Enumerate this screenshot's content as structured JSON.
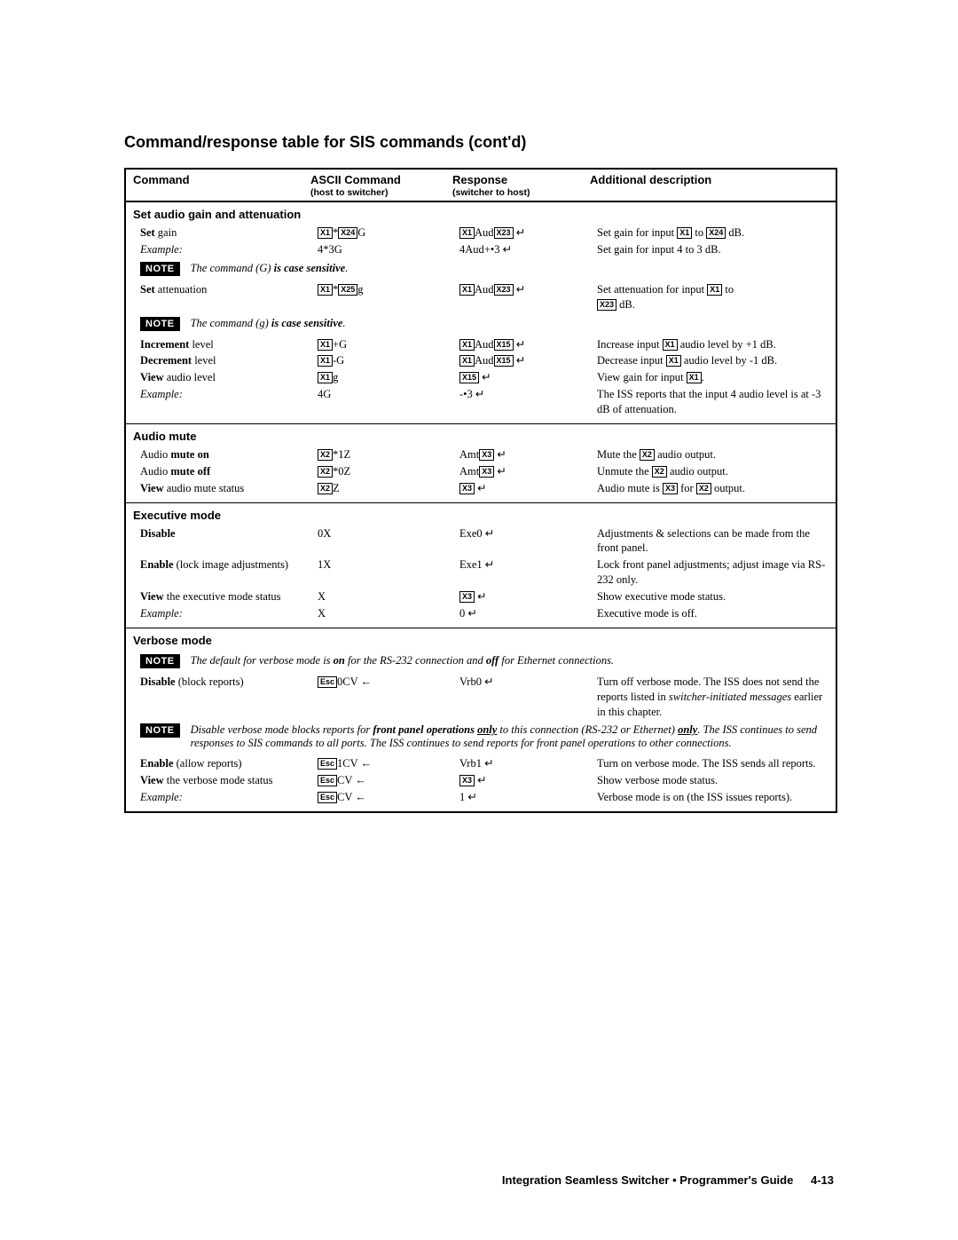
{
  "title": "Command/response table for SIS commands (cont'd)",
  "columns": {
    "c1": "Command",
    "c2": "ASCII Command",
    "c2s": "(host to switcher)",
    "c3": "Response",
    "c3s": "(switcher to host)",
    "c4": "Additional description"
  },
  "sections": {
    "gain": {
      "hdr": "Set audio gain and attenuation",
      "setgain": {
        "label": "Set",
        "label2": " gain",
        "ascii_mid": "*",
        "ascii_tail": "G",
        "resp_mid": "Aud",
        "desc_pre": "Set gain for input ",
        "desc_mid": " to ",
        "desc_post": " dB."
      },
      "ex1": {
        "label": "Example:",
        "ascii": "4*3G",
        "resp": "4Aud+•3 ↵",
        "desc": "Set gain for input 4 to 3 dB."
      },
      "note1": {
        "text_pre": "The command (G) ",
        "text_bold": "is case sensitive",
        "text_post": "."
      },
      "setattn": {
        "label": "Set",
        "label2": " attenuation",
        "ascii_mid": "*",
        "ascii_tail": "g",
        "resp_mid": "Aud",
        "desc_pre": "Set attenuation for input ",
        "desc_mid": " to ",
        "desc_post": " dB."
      },
      "note2": {
        "text_pre": "The command (g) ",
        "text_bold": "is case sensitive",
        "text_post": "."
      },
      "inc": {
        "label": "Increment",
        "label2": " level",
        "ascii_tail": "+G",
        "resp_mid": "Aud",
        "desc_pre": "Increase input ",
        "desc_post": " audio level by +1 dB."
      },
      "dec": {
        "label": "Decrement",
        "label2": " level",
        "ascii_tail": "-G",
        "resp_mid": "Aud",
        "desc_pre": "Decrease input ",
        "desc_post": " audio level by -1 dB."
      },
      "view": {
        "label": "View",
        "label2": " audio level",
        "ascii_tail": "g",
        "desc_pre": "View gain for input ",
        "desc_post": "."
      },
      "ex2": {
        "label": "Example:",
        "ascii": "4G",
        "resp": "-•3 ↵",
        "desc": "The ISS reports that the input 4 audio level is at -3 dB of attenuation."
      }
    },
    "mute": {
      "hdr": "Audio mute",
      "on": {
        "label_pre": "Audio ",
        "label_bold": "mute on",
        "ascii_tail": "*1Z",
        "resp_pre": "Amt",
        "desc_pre": "Mute the ",
        "desc_post": " audio output."
      },
      "off": {
        "label_pre": "Audio ",
        "label_bold": "mute off",
        "ascii_tail": "*0Z",
        "resp_pre": "Amt",
        "desc_pre": "Unmute the ",
        "desc_post": " audio output."
      },
      "view": {
        "label_bold": "View",
        "label2": " audio mute status",
        "ascii_tail": "Z",
        "desc_pre": "Audio mute is ",
        "desc_mid": " for ",
        "desc_post": " output."
      }
    },
    "exec": {
      "hdr": "Executive mode",
      "disable": {
        "label": "Disable",
        "ascii": "0X",
        "resp": "Exe0 ↵",
        "desc": "Adjustments & selections can be made from the front panel."
      },
      "enable": {
        "label": "Enable",
        "label2": " (lock image adjustments)",
        "ascii": "1X",
        "resp": "Exe1 ↵",
        "desc": "Lock front panel adjustments; adjust image via RS-232 only."
      },
      "view": {
        "label": "View",
        "label2": " the executive mode status",
        "ascii": "X",
        "desc": "Show executive mode status."
      },
      "ex": {
        "label": "Example:",
        "ascii": "X",
        "resp": "0 ↵",
        "desc": "Executive mode is off."
      }
    },
    "verbose": {
      "hdr": "Verbose mode",
      "note1": "The default for verbose mode is <b>on</b> for the RS-232 connection and <b>off</b> for Ethernet connections.",
      "disable": {
        "label": "Disable",
        "label2": " (block reports)",
        "ascii_tail": "0CV ←",
        "resp": "Vrb0 ↵",
        "desc": "Turn off verbose mode.  The ISS does not send the reports listed in <i>switcher-initiated messages</i> earlier in this chapter."
      },
      "note2": "Disable verbose mode blocks reports for <b>front panel operations</b> <u><b>only</b></u> to this connection (RS-232 or Ethernet) <u><b>only</b></u>.  The ISS continues to send responses to SIS commands to all ports.  The ISS continues to send reports for front panel operations to other connections.",
      "enable": {
        "label": "Enable",
        "label2": " (allow reports)",
        "ascii_tail": "1CV ←",
        "resp": "Vrb1 ↵",
        "desc": "Turn on verbose mode.  The ISS sends all reports."
      },
      "view": {
        "label": "View",
        "label2": " the verbose mode status",
        "ascii_tail": "CV ←",
        "desc": "Show verbose mode status."
      },
      "ex": {
        "label": "Example:",
        "ascii_tail": "CV ←",
        "resp": "1 ↵",
        "desc": "Verbose mode is on (the ISS issues reports)."
      }
    }
  },
  "xlabels": {
    "x1": "X1",
    "x2": "X2",
    "x3": "X3",
    "x15": "X15",
    "x23": "X23",
    "x24": "X24",
    "x25": "X25",
    "esc": "Esc"
  },
  "footer": {
    "text": "Integration Seamless Switcher • Programmer's Guide",
    "page": "4-13"
  }
}
